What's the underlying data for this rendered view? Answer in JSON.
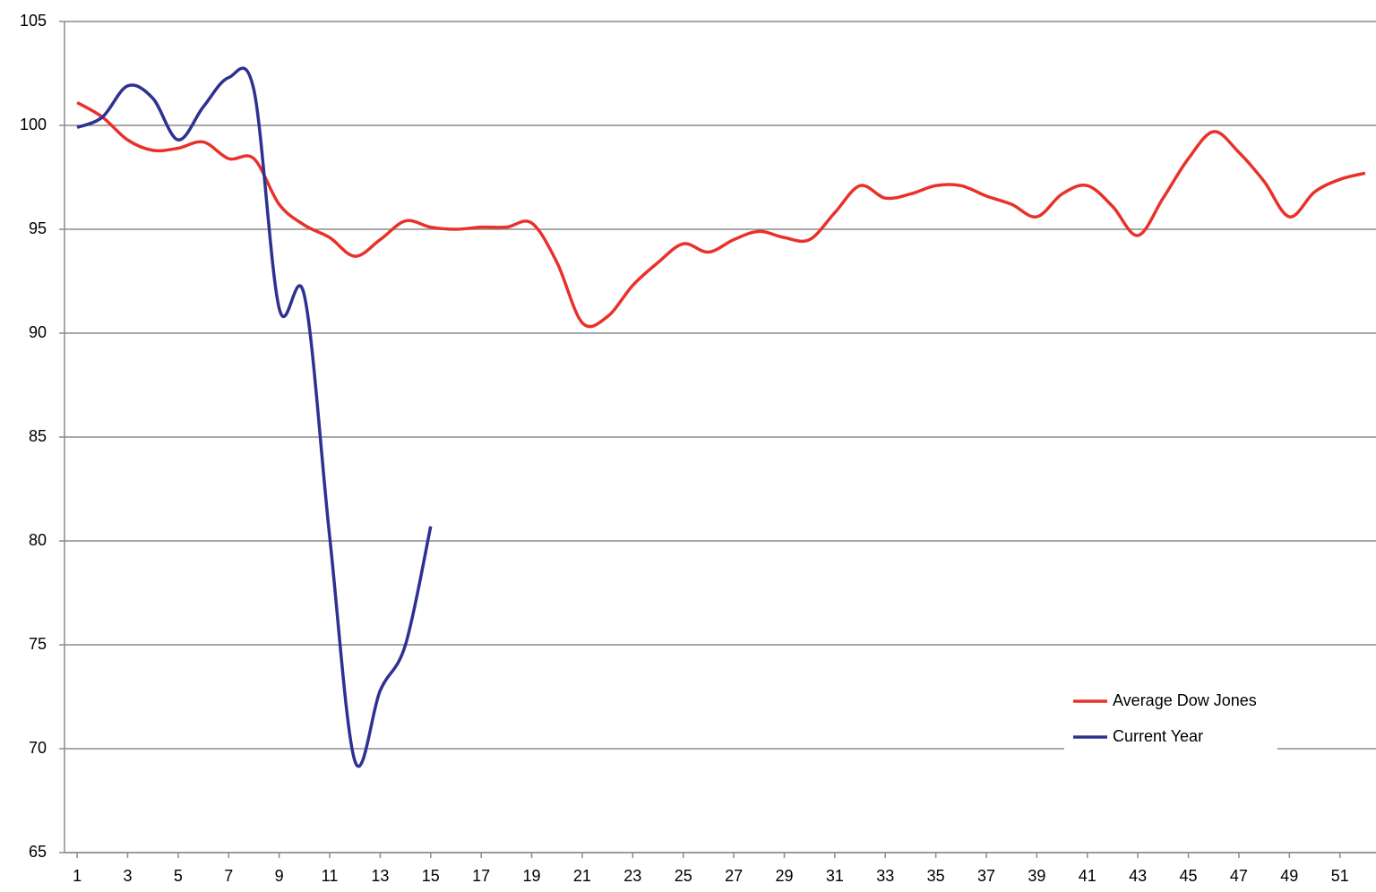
{
  "chart_data": {
    "type": "line",
    "x": [
      1,
      2,
      3,
      4,
      5,
      6,
      7,
      8,
      9,
      10,
      11,
      12,
      13,
      14,
      15,
      16,
      17,
      18,
      19,
      20,
      21,
      22,
      23,
      24,
      25,
      26,
      27,
      28,
      29,
      30,
      31,
      32,
      33,
      34,
      35,
      36,
      37,
      38,
      39,
      40,
      41,
      42,
      43,
      44,
      45,
      46,
      47,
      48,
      49,
      50,
      51,
      52
    ],
    "xlim": [
      0.5,
      52.5
    ],
    "xticks": [
      1,
      3,
      5,
      7,
      9,
      11,
      13,
      15,
      17,
      19,
      21,
      23,
      25,
      27,
      29,
      31,
      33,
      35,
      37,
      39,
      41,
      43,
      45,
      47,
      49,
      51
    ],
    "ylim": [
      65,
      105
    ],
    "yticks": [
      65,
      70,
      75,
      80,
      85,
      90,
      95,
      100,
      105
    ],
    "grid": true,
    "legend": "lower right",
    "series": [
      {
        "name": "Average Dow Jones",
        "color": "#e8312a",
        "values": [
          101.1,
          100.4,
          99.3,
          98.8,
          98.9,
          99.2,
          98.4,
          98.4,
          96.2,
          95.2,
          94.6,
          93.7,
          94.5,
          95.4,
          95.1,
          95.0,
          95.1,
          95.1,
          95.3,
          93.4,
          90.5,
          90.8,
          92.3,
          93.4,
          94.3,
          93.9,
          94.5,
          94.9,
          94.6,
          94.5,
          95.8,
          97.1,
          96.5,
          96.7,
          97.1,
          97.1,
          96.6,
          96.2,
          95.6,
          96.7,
          97.1,
          96.1,
          94.7,
          96.5,
          98.4,
          99.7,
          98.7,
          97.3,
          95.6,
          96.8,
          97.4,
          97.7
        ]
      },
      {
        "name": "Current Year",
        "color": "#2e3192",
        "values": [
          99.9,
          100.4,
          101.9,
          101.3,
          99.3,
          100.9,
          102.3,
          101.7,
          91.2,
          91.8,
          80.2,
          69.4,
          72.8,
          75.0,
          80.7,
          null,
          null,
          null,
          null,
          null,
          null,
          null,
          null,
          null,
          null,
          null,
          null,
          null,
          null,
          null,
          null,
          null,
          null,
          null,
          null,
          null,
          null,
          null,
          null,
          null,
          null,
          null,
          null,
          null,
          null,
          null,
          null,
          null,
          null,
          null,
          null,
          null
        ]
      }
    ]
  }
}
